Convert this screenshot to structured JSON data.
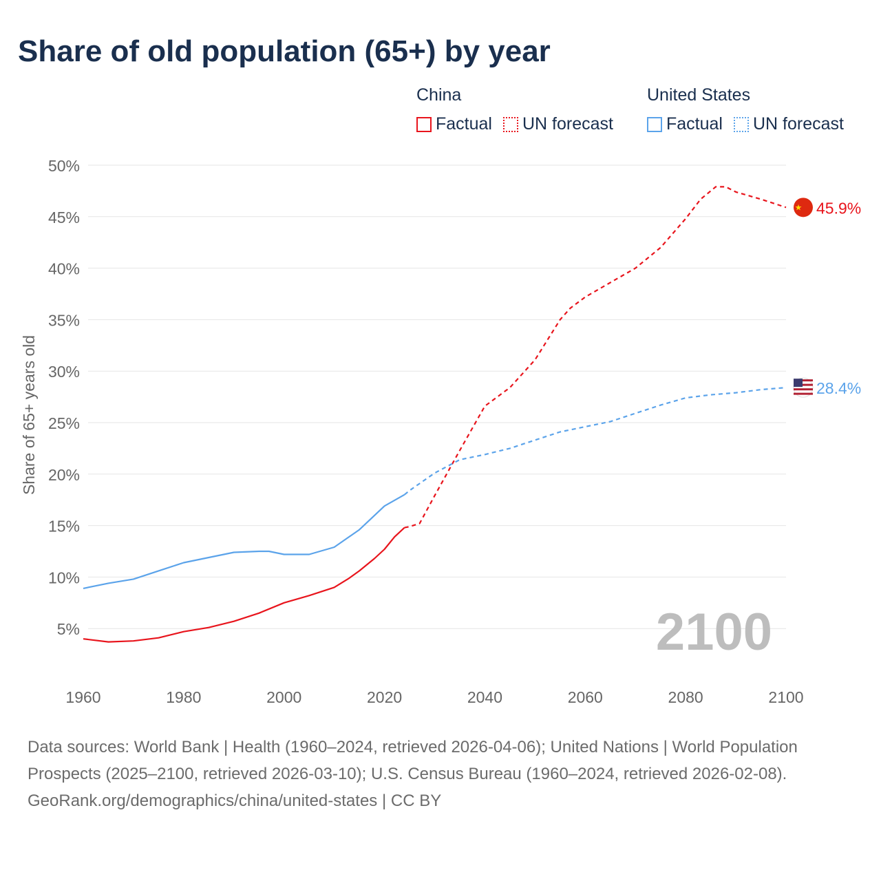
{
  "title": "Share of old population (65+) by year",
  "legend": {
    "groups": [
      {
        "name": "China",
        "color": "#e8141c",
        "items": [
          "Factual",
          "UN forecast"
        ]
      },
      {
        "name": "United States",
        "color": "#5ba3ea",
        "items": [
          "Factual",
          "UN forecast"
        ]
      }
    ]
  },
  "year_watermark": "2100",
  "end_labels": {
    "china": "45.9%",
    "us": "28.4%"
  },
  "footer": {
    "sources": "Data sources: World Bank | Health (1960–2024, retrieved 2026-04-06); United Nations | World Population Prospects (2025–2100, retrieved 2026-03-10); U.S. Census Bureau (1960–2024, retrieved 2026-02-08).",
    "credit": "GeoRank.org/demographics/china/united-states | CC BY"
  },
  "chart_data": {
    "type": "line",
    "title": "Share of old population (65+) by year",
    "xlabel": "",
    "ylabel": "Share of 65+ years old",
    "xlim": [
      1960,
      2100
    ],
    "ylim": [
      0,
      50
    ],
    "xticks": [
      "1960",
      "1980",
      "2000",
      "2020",
      "2040",
      "2060",
      "2080",
      "2100"
    ],
    "yticks": [
      "5%",
      "10%",
      "15%",
      "20%",
      "25%",
      "30%",
      "35%",
      "40%",
      "45%",
      "50%"
    ],
    "grid": true,
    "legend_position": "top-right",
    "series": [
      {
        "name": "China – Factual",
        "color": "#e8141c",
        "style": "solid",
        "x": [
          1960,
          1965,
          1970,
          1975,
          1980,
          1985,
          1990,
          1995,
          2000,
          2005,
          2010,
          2013,
          2015,
          2018,
          2020,
          2022,
          2024
        ],
        "y": [
          4.0,
          3.7,
          3.8,
          4.1,
          4.7,
          5.1,
          5.7,
          6.5,
          7.5,
          8.2,
          9.0,
          9.9,
          10.6,
          11.8,
          12.7,
          13.9,
          14.8
        ]
      },
      {
        "name": "China – UN forecast",
        "color": "#e8141c",
        "style": "dashed",
        "x": [
          2024,
          2025,
          2027,
          2030,
          2035,
          2040,
          2045,
          2050,
          2055,
          2057,
          2060,
          2065,
          2070,
          2075,
          2080,
          2083,
          2086,
          2088,
          2090,
          2095,
          2100
        ],
        "y": [
          14.8,
          14.9,
          15.2,
          17.9,
          22.3,
          26.6,
          28.4,
          31.1,
          35.0,
          36.1,
          37.2,
          38.6,
          40.0,
          42.0,
          44.8,
          46.7,
          47.9,
          47.9,
          47.4,
          46.7,
          45.9
        ]
      },
      {
        "name": "United States – Factual",
        "color": "#5ba3ea",
        "style": "solid",
        "x": [
          1960,
          1965,
          1970,
          1975,
          1980,
          1985,
          1990,
          1995,
          1997,
          2000,
          2005,
          2010,
          2015,
          2020,
          2024
        ],
        "y": [
          8.9,
          9.4,
          9.8,
          10.6,
          11.4,
          11.9,
          12.4,
          12.5,
          12.5,
          12.2,
          12.2,
          12.9,
          14.6,
          16.9,
          18.0
        ]
      },
      {
        "name": "United States – UN forecast",
        "color": "#5ba3ea",
        "style": "dashed",
        "x": [
          2024,
          2025,
          2030,
          2035,
          2040,
          2045,
          2050,
          2055,
          2060,
          2065,
          2070,
          2075,
          2080,
          2085,
          2090,
          2095,
          2100
        ],
        "y": [
          18.0,
          18.4,
          20.1,
          21.4,
          21.9,
          22.5,
          23.3,
          24.1,
          24.6,
          25.1,
          25.9,
          26.7,
          27.4,
          27.7,
          27.9,
          28.2,
          28.4
        ]
      }
    ]
  }
}
